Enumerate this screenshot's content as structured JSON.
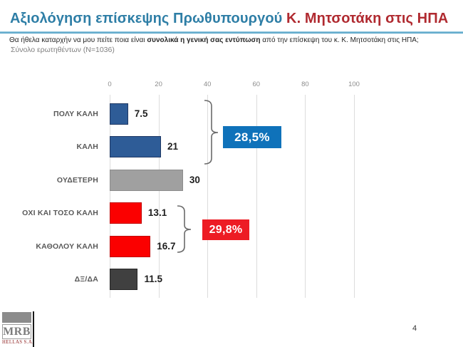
{
  "header": {
    "title_teal": "Αξιολόγηση επίσκεψης Πρωθυπουργού ",
    "title_red": "Κ. Μητσοτάκη στις ΗΠΑ",
    "question_part1": "Θα ήθελα καταρχήν να μου πείτε ποια είναι ",
    "question_bold": "συνολικά η γενική σας εντύπωση",
    "question_part2": " από την επίσκεψη του κ. Κ. Μητσοτάκη  στις ΗΠΑ;",
    "sample": "Σύνολο ερωτηθέντων (Ν=1036)"
  },
  "chart_data": {
    "type": "bar",
    "orientation": "horizontal",
    "title": "",
    "categories": [
      "ΠΟΛΥ ΚΑΛΗ",
      "ΚΑΛΗ",
      "ΟΥΔΕΤΕΡΗ",
      "ΟΧΙ ΚΑΙ ΤΟΣΟ ΚΑΛΗ",
      "ΚΑΘΟΛΟΥ ΚΑΛΗ",
      "ΔΞ/ΔΑ"
    ],
    "values": [
      7.5,
      21,
      30,
      13.1,
      16.7,
      11.5
    ],
    "value_labels": [
      "7.5",
      "21",
      "30",
      "13.1",
      "16.7",
      "11.5"
    ],
    "bar_colors": [
      "#2E5C97",
      "#2E5C97",
      "#A0A0A0",
      "#FB0000",
      "#FB0000",
      "#404040"
    ],
    "bar_border_colors": [
      "#1F3864",
      "#1F3864",
      "#8C8C8C",
      "#C00000",
      "#C00000",
      "#262626"
    ],
    "xlim": [
      0,
      100
    ],
    "x_ticks": [
      "0",
      "20",
      "40",
      "60",
      "80",
      "100"
    ],
    "grid": true,
    "groups": [
      {
        "label": "28,5%",
        "color": "#0F72BA",
        "from": 0,
        "to": 1,
        "categories": [
          "ΠΟΛΥ ΚΑΛΗ",
          "ΚΑΛΗ"
        ],
        "sum": 28.5
      },
      {
        "label": "29,8%",
        "color": "#ED1C24",
        "from": 3,
        "to": 4,
        "categories": [
          "ΟΧΙ ΚΑΙ ΤΟΣΟ ΚΑΛΗ",
          "ΚΑΘΟΛΟΥ ΚΑΛΗ"
        ],
        "sum": 29.8
      }
    ]
  },
  "colors": {
    "title_teal": "#2E7EA6",
    "title_red": "#B02A30",
    "divider_blue": "#4BA4C7",
    "box_blue": "#0F72BA",
    "box_red": "#ED1C24",
    "bracket_gray": "#6B6B6B"
  },
  "footer": {
    "logo_text": "MRB",
    "logo_subtext": "HELLAS S.A.",
    "page_number": "4"
  }
}
